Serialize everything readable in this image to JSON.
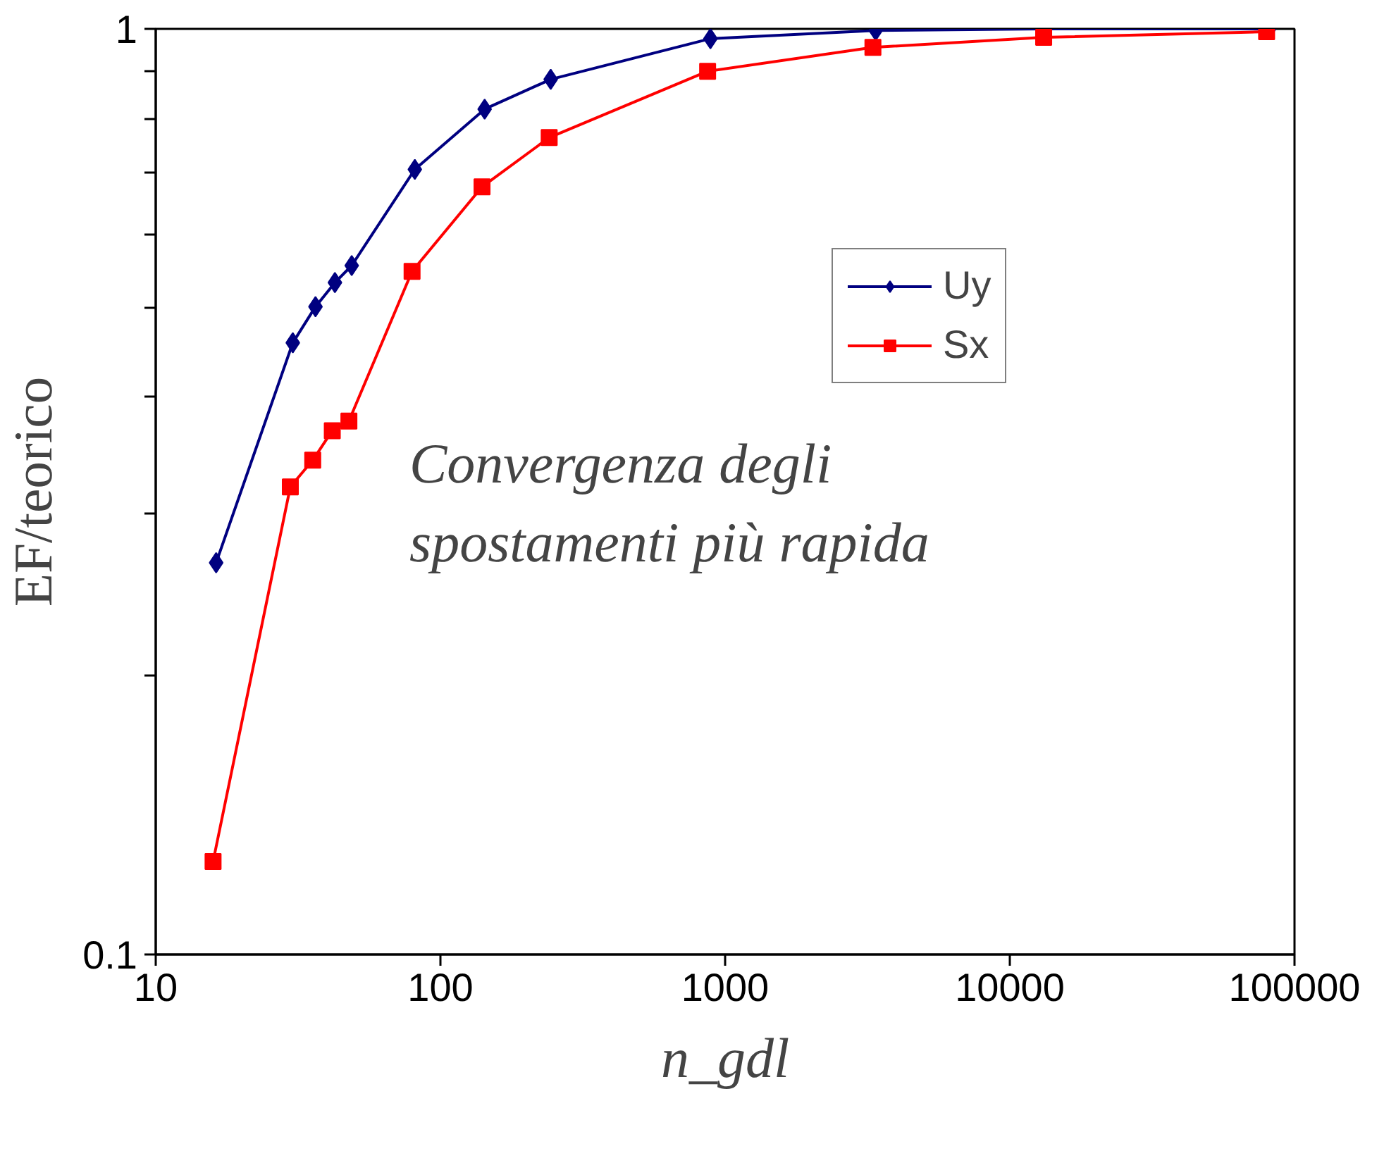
{
  "chart_data": {
    "type": "line",
    "xlabel": "n_gdl",
    "ylabel": "EF/teorico",
    "series": [
      {
        "name": "Uy",
        "color": "#000080",
        "marker": "diamond",
        "x": [
          16.3,
          30.3,
          36.4,
          42.6,
          48.8,
          81.3,
          143,
          244,
          888,
          3380,
          13150,
          81500
        ],
        "values": [
          0.265,
          0.458,
          0.501,
          0.532,
          0.555,
          0.705,
          0.819,
          0.882,
          0.976,
          0.996,
          1.0,
          1.0
        ]
      },
      {
        "name": "Sx",
        "color": "#ff0000",
        "marker": "square",
        "x": [
          15.9,
          29.7,
          35.6,
          41.7,
          47.7,
          79.5,
          140,
          241,
          868,
          3305,
          13150,
          79800
        ],
        "values": [
          0.126,
          0.32,
          0.342,
          0.368,
          0.377,
          0.547,
          0.675,
          0.763,
          0.9,
          0.955,
          0.979,
          0.993
        ]
      }
    ],
    "log": "xy",
    "xlim": [
      10,
      100000
    ],
    "ylim": [
      0.1,
      1
    ],
    "xticks": [
      10,
      100,
      1000,
      10000,
      100000
    ],
    "yticks": [
      0.1,
      {
        "value": 0.2,
        "label": null
      },
      {
        "value": 0.3,
        "label": null
      },
      {
        "value": 0.4,
        "label": null
      },
      {
        "value": 0.5,
        "label": null
      },
      {
        "value": 0.6,
        "label": null
      },
      {
        "value": 0.7,
        "label": null
      },
      {
        "value": 0.8,
        "label": null
      },
      {
        "value": 0.9,
        "label": null
      },
      1
    ],
    "grid": false,
    "legend": "top right",
    "annotations": [
      "Convergenza degli\nspostamenti più rapida"
    ]
  }
}
